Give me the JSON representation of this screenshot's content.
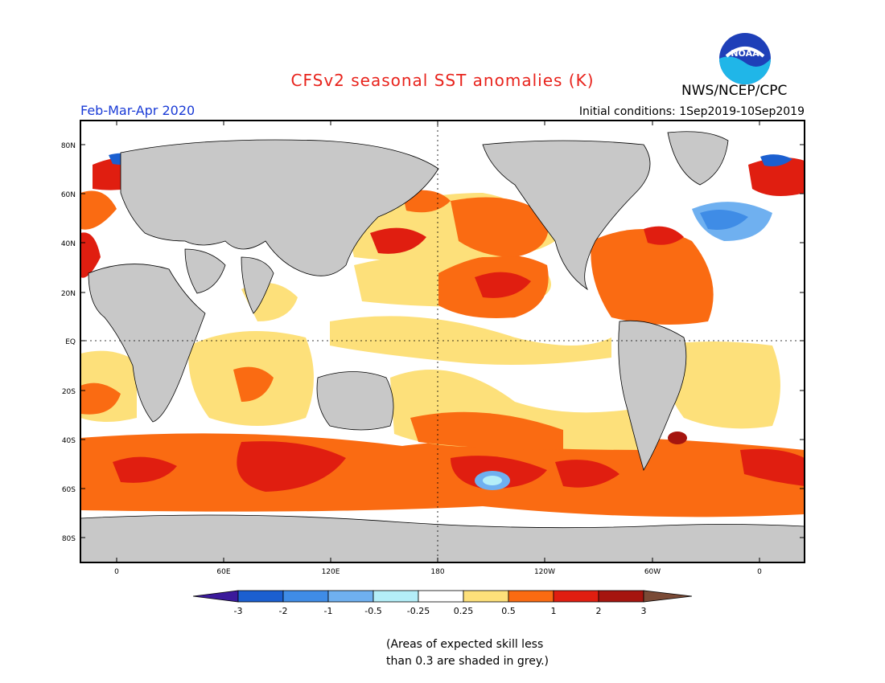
{
  "title": "CFSv2 seasonal SST anomalies (K)",
  "agency": "NWS/NCEP/CPC",
  "logo_text": "NOAA",
  "season": "Feb-Mar-Apr 2020",
  "initial_conditions": "Initial conditions: 1Sep2019-10Sep2019",
  "map": {
    "lat_labels": [
      "80N",
      "60N",
      "40N",
      "20N",
      "EQ",
      "20S",
      "40S",
      "60S",
      "80S"
    ],
    "lon_labels": [
      "0",
      "60E",
      "120E",
      "180",
      "120W",
      "60W",
      "0"
    ],
    "land_color": "#c8c8c8",
    "ocean_color": "#ffffff"
  },
  "legend": {
    "labels": [
      "-3",
      "-2",
      "-1",
      "-0.5",
      "-0.25",
      "0.25",
      "0.5",
      "1",
      "2",
      "3"
    ],
    "colors": [
      "#3b1a9b",
      "#1b5fd0",
      "#3f8ce6",
      "#6fb0f0",
      "#b4eef8",
      "#ffffff",
      "#fde07a",
      "#fa6b12",
      "#e01e10",
      "#a5150f",
      "#7a4a36"
    ]
  },
  "note_lines": [
    "(Areas of expected skill less",
    "than 0.3 are shaded in grey.)"
  ]
}
